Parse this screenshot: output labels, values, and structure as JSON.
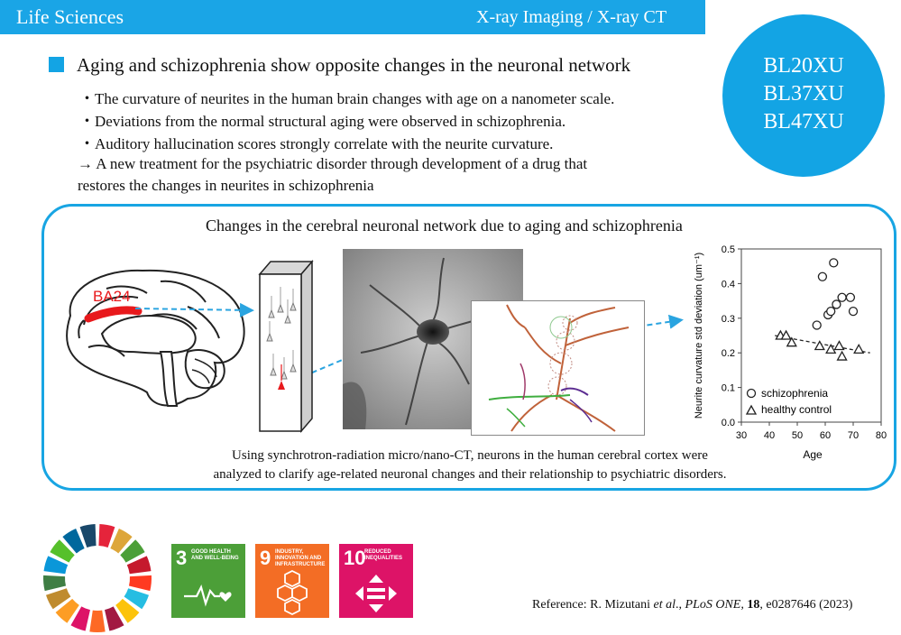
{
  "header": {
    "left_title": "Life Sciences",
    "right_title": "X-ray Imaging / X-ray CT"
  },
  "beamlines": [
    "BL20XU",
    "BL37XU",
    "BL47XU"
  ],
  "headline": "Aging and schizophrenia show opposite changes in the neuronal network",
  "bullets": [
    "・The curvature of neurites in the human brain changes with age on a nanometer scale.",
    "・Deviations from the normal structural aging were observed in schizophrenia.",
    "・Auditory hallucination scores strongly correlate with the neurite curvature."
  ],
  "conclusion": {
    "line1": "→ A new treatment for the psychiatric disorder through development of a drug that",
    "line2": "restores the changes in neurites in schizophrenia"
  },
  "panel": {
    "title": "Changes in the cerebral neuronal network due to aging and schizophrenia",
    "brain_label": "BA24",
    "caption_line1": "Using synchrotron-radiation micro/nano-CT, neurons in the human cerebral cortex were",
    "caption_line2": "analyzed to clarify age-related neuronal changes and their relationship to psychiatric disorders."
  },
  "chart_data": {
    "type": "scatter",
    "xlabel": "Age",
    "ylabel": "Neurite curvature std deviation (um⁻¹)",
    "xlim": [
      30,
      80
    ],
    "ylim": [
      0.0,
      0.5
    ],
    "xticks": [
      "30",
      "40",
      "50",
      "60",
      "70",
      "80"
    ],
    "yticks": [
      "0.0",
      "0.1",
      "0.2",
      "0.3",
      "0.4",
      "0.5"
    ],
    "legend_position": "bottom-left",
    "series": [
      {
        "name": "schizophrenia",
        "marker": "circle",
        "points": [
          [
            59,
            0.42
          ],
          [
            63,
            0.46
          ],
          [
            61,
            0.31
          ],
          [
            62,
            0.32
          ],
          [
            64,
            0.34
          ],
          [
            66,
            0.36
          ],
          [
            69,
            0.36
          ],
          [
            70,
            0.32
          ],
          [
            57,
            0.28
          ]
        ]
      },
      {
        "name": "healthy control",
        "marker": "triangle",
        "points": [
          [
            44,
            0.25
          ],
          [
            46,
            0.25
          ],
          [
            48,
            0.23
          ],
          [
            58,
            0.22
          ],
          [
            62,
            0.21
          ],
          [
            65,
            0.22
          ],
          [
            66,
            0.19
          ],
          [
            72,
            0.21
          ]
        ]
      }
    ],
    "trendline": {
      "from": [
        42,
        0.25
      ],
      "to": [
        76,
        0.2
      ],
      "style": "dashed"
    }
  },
  "sdgs": [
    {
      "number": "3",
      "label": "GOOD HEALTH AND WELL-BEING",
      "color": "#4c9f38",
      "icon": "heartbeat-icon"
    },
    {
      "number": "9",
      "label": "INDUSTRY, INNOVATION AND INFRASTRUCTURE",
      "color": "#f36d25",
      "icon": "cubes-icon"
    },
    {
      "number": "10",
      "label": "REDUCED INEQUALITIES",
      "color": "#dd1367",
      "icon": "equality-arrows-icon"
    }
  ],
  "reference": {
    "prefix": "Reference: R. Mizutani ",
    "etal": "et al",
    "sep1": "., ",
    "journal": "PLoS ONE,",
    "sp": " ",
    "volume": "18",
    "rest": ", e0287646 (2023)"
  },
  "colors": {
    "accent": "#13a4e4",
    "brain_highlight": "#e8191c"
  }
}
